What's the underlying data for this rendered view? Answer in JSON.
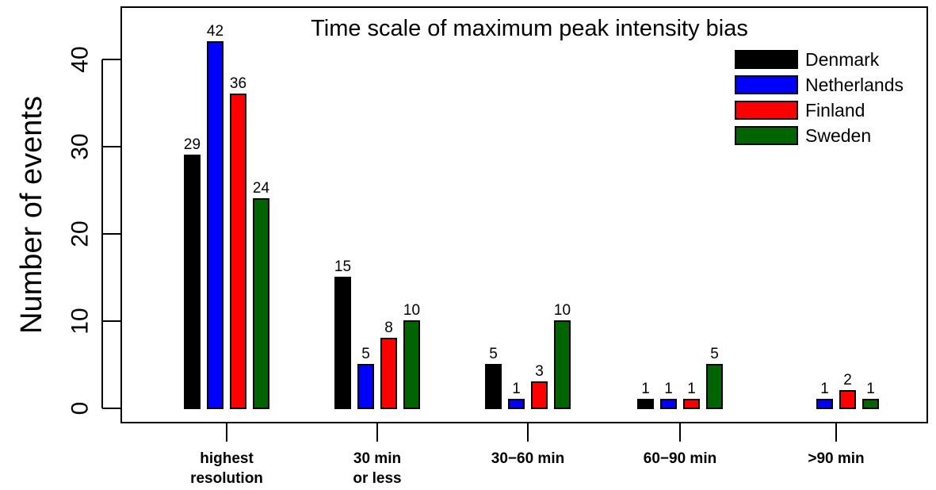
{
  "chart_data": {
    "type": "bar",
    "title": "Time scale of maximum peak intensity bias",
    "xlabel": "",
    "ylabel": "Number of events",
    "ylim": [
      0,
      45
    ],
    "yticks": [
      0,
      10,
      20,
      30,
      40
    ],
    "categories": [
      [
        "highest",
        "resolution"
      ],
      [
        "30 min",
        "or less"
      ],
      [
        "30−60 min"
      ],
      [
        "60−90 min"
      ],
      [
        ">90 min"
      ]
    ],
    "series": [
      {
        "name": "Denmark",
        "color": "#000000",
        "values": [
          29,
          15,
          5,
          1,
          0
        ]
      },
      {
        "name": "Netherlands",
        "color": "#0000ff",
        "values": [
          42,
          5,
          1,
          1,
          1
        ]
      },
      {
        "name": "Finland",
        "color": "#ff0000",
        "values": [
          36,
          8,
          3,
          1,
          2
        ]
      },
      {
        "name": "Sweden",
        "color": "#006400",
        "values": [
          24,
          10,
          10,
          5,
          1
        ]
      }
    ],
    "data_labels": [
      [
        "29",
        "42",
        "36",
        "24"
      ],
      [
        "15",
        "5",
        "8",
        "10"
      ],
      [
        "5",
        "1",
        "3",
        "10"
      ],
      [
        "1",
        "1",
        "1",
        "5"
      ],
      [
        "",
        "1",
        "2",
        "1"
      ]
    ],
    "legend": "top-right",
    "grid": false
  }
}
